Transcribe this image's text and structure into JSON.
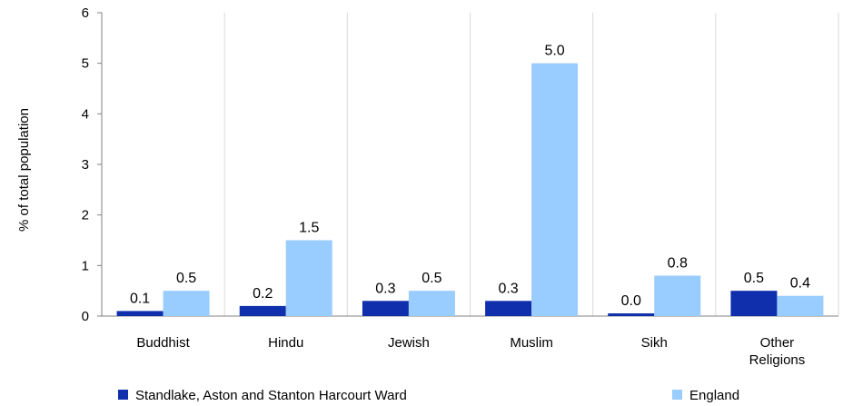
{
  "chart_data": {
    "type": "bar",
    "title": "",
    "xlabel": "",
    "ylabel": "% of total population",
    "ylim": [
      0,
      6
    ],
    "yticks": [
      0,
      1,
      2,
      3,
      4,
      5,
      6
    ],
    "grid": "vertical separators between categories",
    "legend_position": "bottom",
    "categories": [
      [
        "Buddhist"
      ],
      [
        "Hindu"
      ],
      [
        "Jewish"
      ],
      [
        "Muslim"
      ],
      [
        "Sikh"
      ],
      [
        "Other",
        "Religions"
      ]
    ],
    "series": [
      {
        "name": "Standlake, Aston and Stanton Harcourt Ward",
        "color": "#0f2fad",
        "values": [
          0.1,
          0.2,
          0.3,
          0.3,
          0.0,
          0.5
        ],
        "labels": [
          "0.1",
          "0.2",
          "0.3",
          "0.3",
          "0.0",
          "0.5"
        ]
      },
      {
        "name": "England",
        "color": "#99ccff",
        "values": [
          0.5,
          1.5,
          0.5,
          5.0,
          0.8,
          0.4
        ],
        "labels": [
          "0.5",
          "1.5",
          "0.5",
          "5.0",
          "0.8",
          "0.4"
        ]
      }
    ]
  }
}
